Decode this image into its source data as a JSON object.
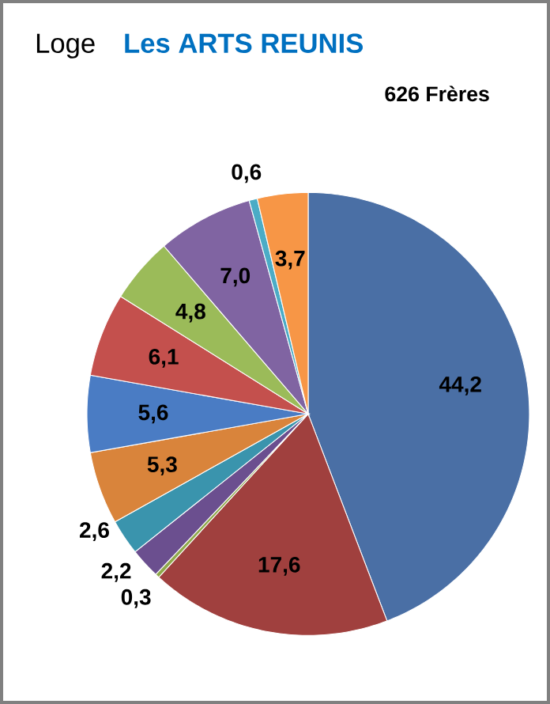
{
  "chart_data": {
    "type": "pie",
    "title": "Loge",
    "subtitle": "Les ARTS REUNIS",
    "annotations": [
      "626 Frères"
    ],
    "categories": [
      null,
      null,
      null,
      null,
      null,
      null,
      null,
      null,
      null,
      null,
      null,
      null
    ],
    "values": [
      44.2,
      17.6,
      0.3,
      2.2,
      2.6,
      5.3,
      5.6,
      6.1,
      4.8,
      7.0,
      0.6,
      3.7
    ],
    "value_labels": [
      "44,2",
      "17,6",
      "0,3",
      "2,2",
      "2,6",
      "5,3",
      "5,6",
      "6,1",
      "4,8",
      "7,0",
      "0,6",
      "3,7"
    ],
    "colors": [
      "#4a6fa5",
      "#a0403e",
      "#8fa84a",
      "#6b4f8f",
      "#3a94ad",
      "#d9843b",
      "#4a7cc4",
      "#c4504d",
      "#9bbb59",
      "#8064a2",
      "#4bacc6",
      "#f79646"
    ]
  }
}
